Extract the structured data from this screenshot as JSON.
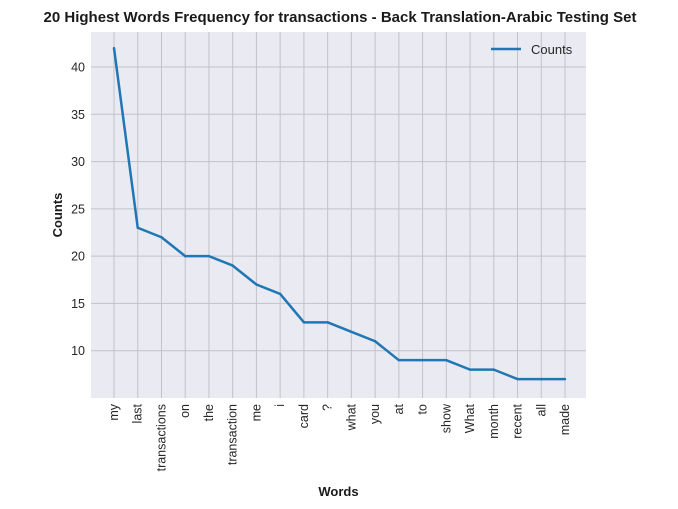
{
  "chart_data": {
    "type": "line",
    "title": "20 Highest Words Frequency for transactions - Back Translation-Arabic Testing Set",
    "xlabel": "Words",
    "ylabel": "Counts",
    "categories": [
      "my",
      "last",
      "transactions",
      "on",
      "the",
      "transaction",
      "me",
      "i",
      "card",
      "?",
      "what",
      "you",
      "at",
      "to",
      "show",
      "What",
      "month",
      "recent",
      "all",
      "made"
    ],
    "series": [
      {
        "name": "Counts",
        "values": [
          42,
          23,
          22,
          20,
          20,
          19,
          17,
          16,
          13,
          13,
          12,
          11,
          9,
          9,
          9,
          8,
          8,
          7,
          7,
          7
        ]
      }
    ],
    "ylim": [
      5,
      43.7
    ],
    "yticks": [
      10,
      15,
      20,
      25,
      30,
      35,
      40
    ],
    "grid": true,
    "legend": "top-right",
    "colors": {
      "line": "#1f77b4",
      "background": "#eaeaf2",
      "grid": "#c2c2c8"
    }
  }
}
